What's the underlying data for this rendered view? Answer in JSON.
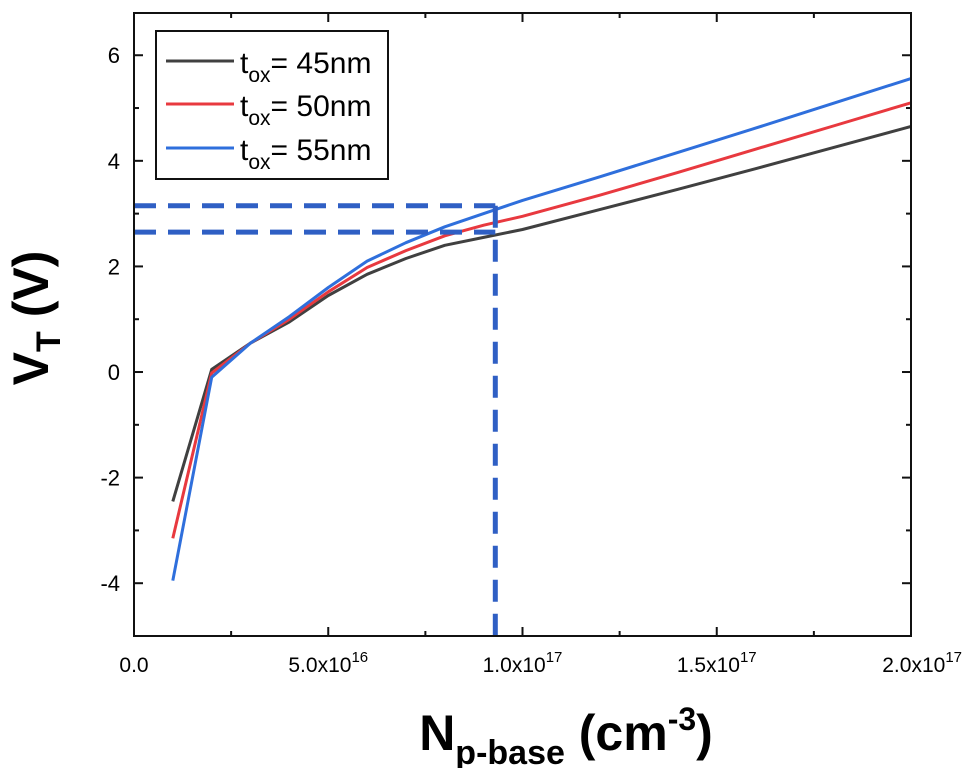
{
  "chart_data": {
    "type": "line",
    "xlabel": {
      "main": "N",
      "sub": "p-base",
      "unit_open": " (cm",
      "sup": "-3",
      "unit_close": ")"
    },
    "ylabel": {
      "main": "V",
      "sub": "T",
      "unit": " (V)"
    },
    "xlim": [
      0,
      2e+17
    ],
    "ylim": [
      -5,
      6.8
    ],
    "x_ticks": [
      {
        "value": 0,
        "mantissa": "0.0",
        "exp": ""
      },
      {
        "value": 5e+16,
        "mantissa": "5.0x10",
        "exp": "16"
      },
      {
        "value": 1e+17,
        "mantissa": "1.0x10",
        "exp": "17"
      },
      {
        "value": 1.5e+17,
        "mantissa": "1.5x10",
        "exp": "17"
      },
      {
        "value": 2e+17,
        "mantissa": "2.0x10",
        "exp": "17"
      }
    ],
    "y_ticks": [
      {
        "value": -4,
        "label": "-4"
      },
      {
        "value": -2,
        "label": "-2"
      },
      {
        "value": 0,
        "label": "0"
      },
      {
        "value": 2,
        "label": "2"
      },
      {
        "value": 4,
        "label": "4"
      },
      {
        "value": 6,
        "label": "6"
      }
    ],
    "grid": false,
    "legend_position": "top-left",
    "series": [
      {
        "name_base": "t",
        "name_sub": "ox",
        "name_rest": "= 45nm",
        "color": "#404040",
        "x": [
          1e+16,
          2e+16,
          3e+16,
          4e+16,
          5e+16,
          6e+16,
          7e+16,
          8e+16,
          9e+16,
          1e+17,
          1.2e+17,
          1.4e+17,
          1.6e+17,
          1.8e+17,
          2e+17
        ],
        "y": [
          -2.45,
          0.05,
          0.55,
          0.95,
          1.45,
          1.85,
          2.15,
          2.4,
          2.55,
          2.7,
          3.08,
          3.46,
          3.85,
          4.25,
          4.65
        ]
      },
      {
        "name_base": "t",
        "name_sub": "ox",
        "name_rest": "= 50nm",
        "color": "#e8393f",
        "x": [
          1e+16,
          2e+16,
          3e+16,
          4e+16,
          5e+16,
          6e+16,
          7e+16,
          8e+16,
          9e+16,
          1e+17,
          1.2e+17,
          1.4e+17,
          1.6e+17,
          1.8e+17,
          2e+17
        ],
        "y": [
          -3.15,
          -0.02,
          0.55,
          1.0,
          1.52,
          1.98,
          2.3,
          2.58,
          2.78,
          2.95,
          3.35,
          3.78,
          4.22,
          4.66,
          5.1
        ]
      },
      {
        "name_base": "t",
        "name_sub": "ox",
        "name_rest": "= 55nm",
        "color": "#2f6fdc",
        "x": [
          1e+16,
          2e+16,
          3e+16,
          4e+16,
          5e+16,
          6e+16,
          7e+16,
          8e+16,
          9e+16,
          1e+17,
          1.2e+17,
          1.4e+17,
          1.6e+17,
          1.8e+17,
          2e+17
        ],
        "y": [
          -3.95,
          -0.1,
          0.55,
          1.05,
          1.6,
          2.1,
          2.45,
          2.75,
          3.0,
          3.25,
          3.7,
          4.16,
          4.62,
          5.09,
          5.56
        ]
      }
    ],
    "reference_lines": {
      "color": "#2f5fc4",
      "x_value": 9.3e+16,
      "y_values": [
        3.15,
        2.65
      ]
    }
  }
}
